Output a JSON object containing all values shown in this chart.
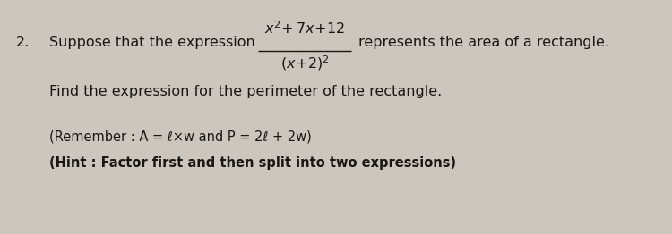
{
  "background_color": "#ccc8c0",
  "text_color": "#1a1610",
  "number": "2.",
  "line1_pre": "Suppose that the expression",
  "line1_post": "represents the area of a rectangle.",
  "line2": "Find the expression for the perimeter of the rectangle.",
  "line3": "(Remember : A = ℓ×w and P = 2ℓ + 2w)",
  "line4": "(Hint : Factor first and then split into two expressions)",
  "font_size": 11.5,
  "font_size_small": 10.5
}
